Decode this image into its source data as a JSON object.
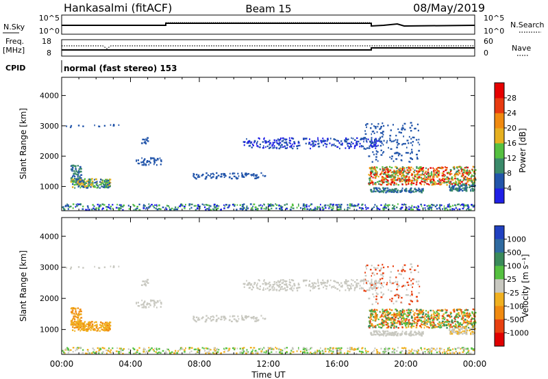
{
  "header": {
    "station": "Hankasalmi (fitACF)",
    "beam": "Beam 15",
    "date": "08/May/2019"
  },
  "top_panels": {
    "nsky_label": "N.Sky",
    "nsky_ticks": [
      "10^5",
      "10^0"
    ],
    "nsearch_label": "N.Search",
    "nsearch_ticks": [
      "10^5",
      "10^0"
    ],
    "freq_label_1": "Freq.",
    "freq_label_2": "[MHz]",
    "freq_ticks": [
      "18",
      "8"
    ],
    "nave_label": "Nave",
    "nave_ticks": [
      "60",
      "0"
    ],
    "cpid_label": "CPID",
    "cpid_text": "normal (fast stereo) 153"
  },
  "chart_data": [
    {
      "type": "heatmap",
      "name": "power",
      "ylabel": "Slant Range [km]",
      "ylim": [
        200,
        4600
      ],
      "yticks": [
        "1000",
        "2000",
        "3000",
        "4000"
      ],
      "colorbar_label": "Power [dB]",
      "colorbar_ticks": [
        "4",
        "8",
        "12",
        "16",
        "20",
        "24",
        "28"
      ],
      "colorbar_colors": [
        "#1f1fe6",
        "#2255aa",
        "#3a8a6a",
        "#55c040",
        "#e6b020",
        "#f08a10",
        "#e83a10",
        "#e60000"
      ]
    },
    {
      "type": "heatmap",
      "name": "velocity",
      "ylabel": "Slant Range [km]",
      "ylim": [
        200,
        4600
      ],
      "yticks": [
        "1000",
        "2000",
        "3000",
        "4000"
      ],
      "colorbar_label": "Velocity [m s⁻¹]",
      "colorbar_ticks": [
        "1000",
        "500",
        "100",
        "25",
        "-25",
        "-100",
        "-500",
        "-1000"
      ],
      "colorbar_colors": [
        "#2040c0",
        "#2f6aa0",
        "#3a8a5a",
        "#55c040",
        "#c8c8c0",
        "#f0b020",
        "#f08a10",
        "#e84010",
        "#e00000"
      ]
    }
  ],
  "time_axis": {
    "ticks": [
      "00:00",
      "04:00",
      "08:00",
      "12:00",
      "16:00",
      "20:00",
      "00:00"
    ],
    "label": "Time UT"
  },
  "colors": {
    "axis": "#000000",
    "background": "#ffffff"
  }
}
